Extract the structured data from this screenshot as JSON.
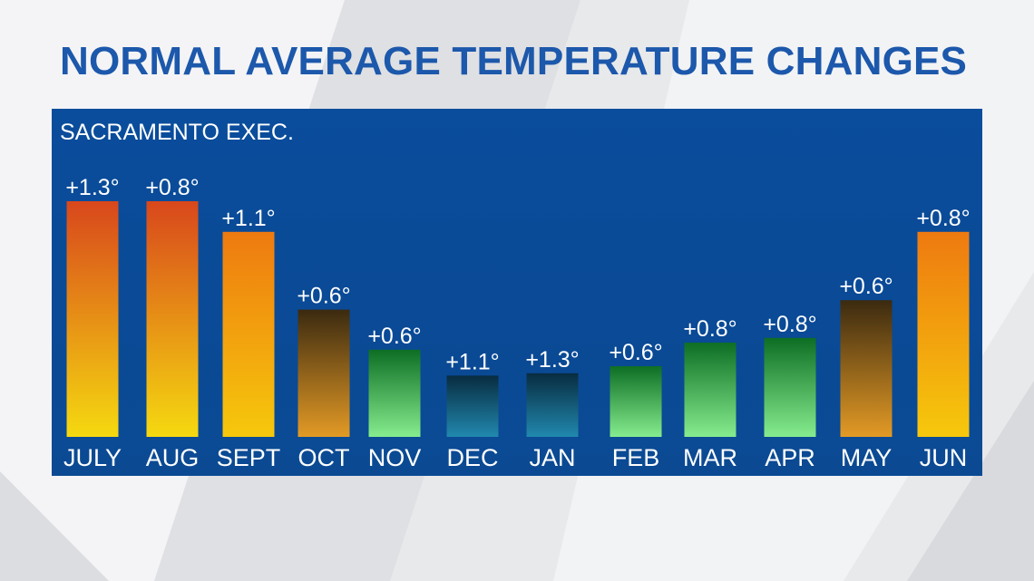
{
  "title": "NORMAL AVERAGE TEMPERATURE CHANGES",
  "chart_data": {
    "type": "bar",
    "title": "NORMAL AVERAGE TEMPERATURE CHANGES",
    "subtitle": "SACRAMENTO EXEC.",
    "xlabel": "",
    "ylabel": "",
    "categories": [
      "JULY",
      "AUG",
      "SEPT",
      "OCT",
      "NOV",
      "DEC",
      "JAN",
      "FEB",
      "MAR",
      "APR",
      "MAY",
      "JUN"
    ],
    "values": [
      1.3,
      0.8,
      1.1,
      0.6,
      0.6,
      1.1,
      1.3,
      0.6,
      0.8,
      0.8,
      0.6,
      0.8
    ],
    "value_labels": [
      "+1.3°",
      "+0.8°",
      "+1.1°",
      "+0.6°",
      "+0.6°",
      "+1.1°",
      "+1.3°",
      "+0.6°",
      "+0.8°",
      "+0.8°",
      "+0.6°",
      "+0.8°"
    ],
    "bar_heights_relative": [
      1.0,
      1.0,
      0.87,
      0.54,
      0.37,
      0.26,
      0.27,
      0.3,
      0.4,
      0.42,
      0.58,
      0.87
    ],
    "bar_colors": [
      [
        "#d8471c",
        "#f5d910"
      ],
      [
        "#d8471c",
        "#f5d910"
      ],
      [
        "#ee7a10",
        "#f6c80c"
      ],
      [
        "#3b2a10",
        "#e39a25"
      ],
      [
        "#0d6e24",
        "#86ec8e"
      ],
      [
        "#082c40",
        "#2188ae"
      ],
      [
        "#082c40",
        "#2188ae"
      ],
      [
        "#0d6e24",
        "#86ec8e"
      ],
      [
        "#0d6e24",
        "#86ec8e"
      ],
      [
        "#0d6e24",
        "#86ec8e"
      ],
      [
        "#3b2a10",
        "#e39a25"
      ],
      [
        "#ee7a10",
        "#f6c80c"
      ]
    ],
    "grid": false,
    "legend": "none"
  }
}
